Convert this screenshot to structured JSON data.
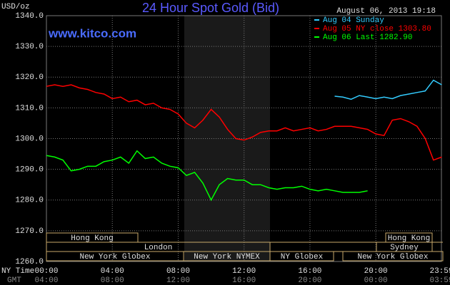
{
  "chart_data": {
    "type": "line",
    "title": "24 Hour Spot Gold (Bid)",
    "timestamp": "August 06, 2013 19:18",
    "source": "www.kitco.com",
    "y_label": "USD/oz",
    "x_label": "NY Time",
    "x2_label": "GMT",
    "x": [
      0,
      0.5,
      1,
      1.5,
      2,
      2.5,
      3,
      3.5,
      4,
      4.5,
      5,
      5.5,
      6,
      6.5,
      7,
      7.5,
      8,
      8.5,
      9,
      9.5,
      10,
      10.5,
      11,
      11.5,
      12,
      12.5,
      13,
      13.5,
      14,
      14.5,
      15,
      15.5,
      16,
      16.5,
      17,
      17.5,
      18,
      18.5,
      19,
      19.5,
      20,
      20.5,
      21,
      21.5,
      22,
      22.5,
      23,
      23.5,
      24
    ],
    "series": [
      {
        "name": "Aug 04 Sunday",
        "color": "#33ccff",
        "values": [
          null,
          null,
          null,
          null,
          null,
          null,
          null,
          null,
          null,
          null,
          null,
          null,
          null,
          null,
          null,
          null,
          null,
          null,
          null,
          null,
          null,
          null,
          null,
          null,
          null,
          null,
          null,
          null,
          null,
          null,
          null,
          null,
          null,
          null,
          null,
          1313.8,
          1313.5,
          1312.8,
          1314,
          1313.5,
          1313,
          1313.5,
          1313,
          1314,
          1314.5,
          1315,
          1315.5,
          1319,
          1317.5
        ]
      },
      {
        "name": "Aug 05 NY close 1303.80",
        "color": "#ff0000",
        "values": [
          1317,
          1317.5,
          1317,
          1317.5,
          1316.5,
          1316,
          1315,
          1314.5,
          1313,
          1313.5,
          1312,
          1312.5,
          1311,
          1311.5,
          1310,
          1309.5,
          1308,
          1305,
          1303.5,
          1306,
          1309.5,
          1307,
          1303,
          1300,
          1299.5,
          1300.5,
          1302,
          1302.5,
          1302.5,
          1303.5,
          1302.5,
          1303,
          1303.5,
          1302.5,
          1303,
          1304,
          1304,
          1304,
          1303.5,
          1303,
          1301.5,
          1301,
          1306,
          1306.5,
          1305.5,
          1304,
          1300,
          1293,
          1294
        ]
      },
      {
        "name": "Aug 06 Last 1282.90",
        "color": "#00ff00",
        "values": [
          1294.5,
          1294,
          1293,
          1289.5,
          1290,
          1291,
          1291,
          1292.5,
          1293,
          1294,
          1292,
          1296,
          1293.5,
          1294,
          1292,
          1291,
          1290.5,
          1288,
          1289,
          1285.5,
          1280,
          1285,
          1287,
          1286.5,
          1286.5,
          1285,
          1285,
          1284,
          1283.5,
          1284,
          1284,
          1284.5,
          1283.5,
          1283,
          1283.5,
          1283,
          1282.5,
          1282.5,
          1282.5,
          1283,
          null,
          null,
          null,
          null,
          null,
          null,
          null,
          null,
          null
        ]
      }
    ],
    "xlim": [
      0,
      23.9833
    ],
    "xticks": [
      {
        "value": 0,
        "label": "00:00"
      },
      {
        "value": 4,
        "label": "04:00"
      },
      {
        "value": 8,
        "label": "08:00"
      },
      {
        "value": 12,
        "label": "12:00"
      },
      {
        "value": 16,
        "label": "16:00"
      },
      {
        "value": 20,
        "label": "20:00"
      },
      {
        "value": 23.9833,
        "label": "23:59"
      }
    ],
    "gmt_labels": [
      "04:00",
      "08:00",
      "12:00",
      "16:00",
      "20:00",
      "00:00",
      "03:59"
    ],
    "ylim": [
      1260,
      1340
    ],
    "yticks": [
      {
        "value": 1260,
        "label": "1260.0"
      },
      {
        "value": 1270,
        "label": "1270.0"
      },
      {
        "value": 1280,
        "label": "1280.0"
      },
      {
        "value": 1290,
        "label": "1290.0"
      },
      {
        "value": 1300,
        "label": "1300.0"
      },
      {
        "value": 1310,
        "label": "1310.0"
      },
      {
        "value": 1320,
        "label": "1320.0"
      },
      {
        "value": 1330,
        "label": "1330.0"
      },
      {
        "value": 1340,
        "label": "1340.0"
      }
    ],
    "grid": true,
    "sessions": [
      "Hong Kong",
      "Hong Kong",
      "London",
      "Sydney",
      "New York Globex",
      "New York NYMEX",
      "NY Globex",
      "New York Globex"
    ]
  }
}
